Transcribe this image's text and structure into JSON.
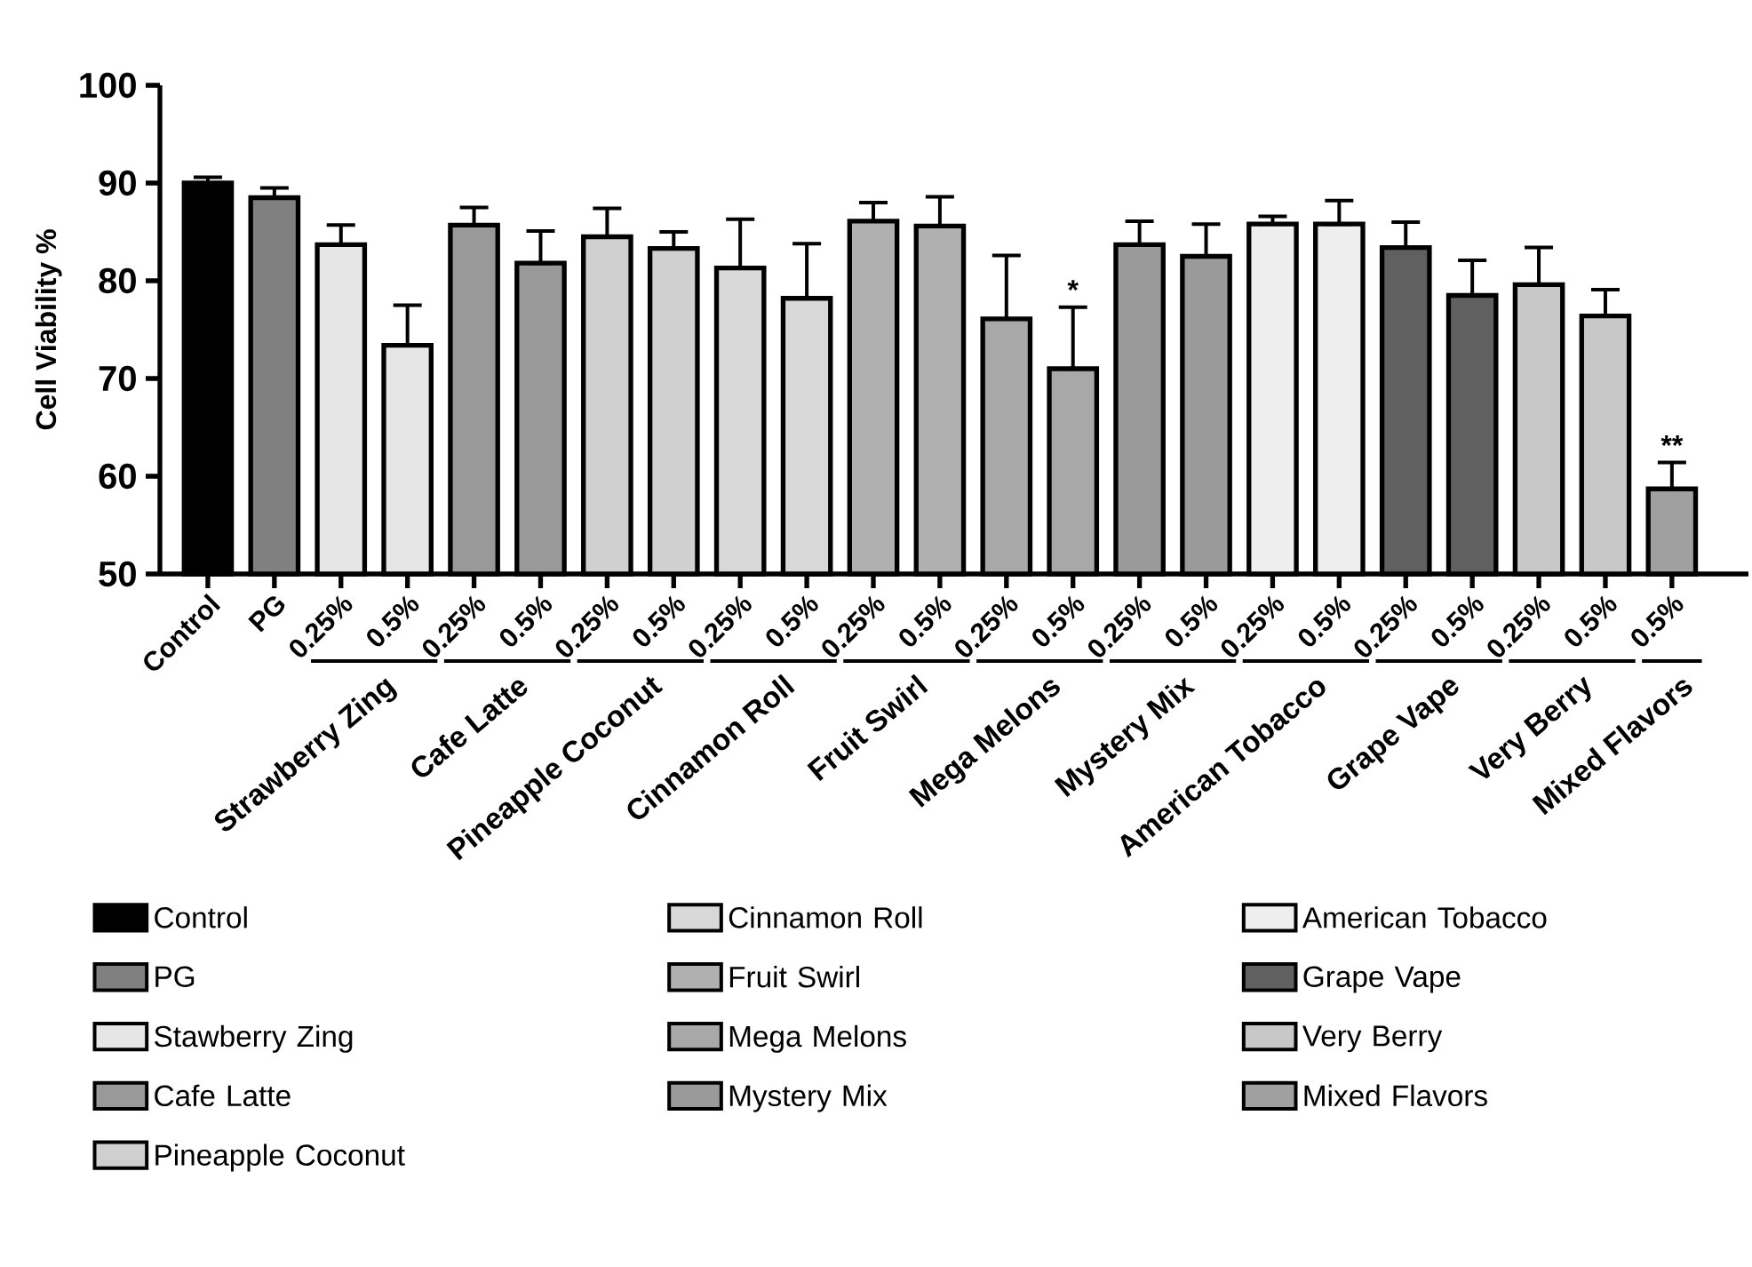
{
  "chart_data": {
    "type": "bar",
    "ylabel": "Cell Viability %",
    "ylim": [
      50,
      100
    ],
    "yticks": [
      50,
      60,
      70,
      80,
      90,
      100
    ],
    "legend": "bottom",
    "categories": [
      "Control",
      "PG",
      "0.25%",
      "0.5%",
      "0.25%",
      "0.5%",
      "0.25%",
      "0.5%",
      "0.25%",
      "0.5%",
      "0.25%",
      "0.5%",
      "0.25%",
      "0.5%",
      "0.25%",
      "0.5%",
      "0.25%",
      "0.5%",
      "0.25%",
      "0.5%",
      "0.25%",
      "0.5%",
      "0.5%"
    ],
    "annotations": [
      "Strawberry Zing",
      "Cafe Latte",
      "Pineapple Coconut",
      "Cinnamon Roll",
      "Fruit Swirl",
      "Mega Melons",
      "Mystery Mix",
      "American Tobacco",
      "Grape Vape",
      "Very Berry",
      "Mixed Flavors"
    ],
    "series": [
      {
        "name": "Control",
        "color": "#000000",
        "values": [
          90.0,
          null,
          null,
          null,
          null,
          null,
          null,
          null,
          null,
          null,
          null,
          null,
          null,
          null,
          null,
          null,
          null,
          null,
          null,
          null,
          null,
          null,
          null
        ],
        "errors": [
          [
            90.0,
            90.6
          ],
          null,
          null,
          null,
          null,
          null,
          null,
          null,
          null,
          null,
          null,
          null,
          null,
          null,
          null,
          null,
          null,
          null,
          null,
          null,
          null,
          null,
          null
        ]
      },
      {
        "name": "PG",
        "color": "#808080",
        "values": [
          null,
          88.5,
          null,
          null,
          null,
          null,
          null,
          null,
          null,
          null,
          null,
          null,
          null,
          null,
          null,
          null,
          null,
          null,
          null,
          null,
          null,
          null,
          null
        ],
        "errors": [
          null,
          [
            88.5,
            89.5
          ],
          null,
          null,
          null,
          null,
          null,
          null,
          null,
          null,
          null,
          null,
          null,
          null,
          null,
          null,
          null,
          null,
          null,
          null,
          null,
          null,
          null
        ]
      },
      {
        "name": "Stawberry Zing",
        "color": "#e6e6e6",
        "values": [
          null,
          null,
          83.7,
          73.4,
          null,
          null,
          null,
          null,
          null,
          null,
          null,
          null,
          null,
          null,
          null,
          null,
          null,
          null,
          null,
          null,
          null,
          null,
          null
        ],
        "errors": [
          null,
          null,
          [
            83.7,
            85.7
          ],
          [
            73.4,
            77.5
          ],
          null,
          null,
          null,
          null,
          null,
          null,
          null,
          null,
          null,
          null,
          null,
          null,
          null,
          null,
          null,
          null,
          null,
          null,
          null
        ]
      },
      {
        "name": "Cafe Latte",
        "color": "#999999",
        "values": [
          null,
          null,
          null,
          null,
          85.7,
          81.8,
          null,
          null,
          null,
          null,
          null,
          null,
          null,
          null,
          null,
          null,
          null,
          null,
          null,
          null,
          null,
          null,
          null
        ],
        "errors": [
          null,
          null,
          null,
          null,
          [
            85.7,
            87.5
          ],
          [
            81.8,
            85.1
          ],
          null,
          null,
          null,
          null,
          null,
          null,
          null,
          null,
          null,
          null,
          null,
          null,
          null,
          null,
          null,
          null,
          null
        ]
      },
      {
        "name": "Pineapple Coconut",
        "color": "#d0d0d0",
        "values": [
          null,
          null,
          null,
          null,
          null,
          null,
          84.5,
          83.3,
          null,
          null,
          null,
          null,
          null,
          null,
          null,
          null,
          null,
          null,
          null,
          null,
          null,
          null,
          null
        ],
        "errors": [
          null,
          null,
          null,
          null,
          null,
          null,
          [
            84.5,
            87.4
          ],
          [
            83.3,
            85.0
          ],
          null,
          null,
          null,
          null,
          null,
          null,
          null,
          null,
          null,
          null,
          null,
          null,
          null,
          null,
          null
        ]
      },
      {
        "name": "Cinnamon Roll",
        "color": "#d8d8d8",
        "values": [
          null,
          null,
          null,
          null,
          null,
          null,
          null,
          null,
          81.3,
          78.2,
          null,
          null,
          null,
          null,
          null,
          null,
          null,
          null,
          null,
          null,
          null,
          null,
          null
        ],
        "errors": [
          null,
          null,
          null,
          null,
          null,
          null,
          null,
          null,
          [
            81.3,
            86.3
          ],
          [
            78.2,
            83.8
          ],
          null,
          null,
          null,
          null,
          null,
          null,
          null,
          null,
          null,
          null,
          null,
          null,
          null
        ]
      },
      {
        "name": "Fruit Swirl",
        "color": "#b0b0b0",
        "values": [
          null,
          null,
          null,
          null,
          null,
          null,
          null,
          null,
          null,
          null,
          86.1,
          85.6,
          null,
          null,
          null,
          null,
          null,
          null,
          null,
          null,
          null,
          null,
          null
        ],
        "errors": [
          null,
          null,
          null,
          null,
          null,
          null,
          null,
          null,
          null,
          null,
          [
            86.1,
            88.0
          ],
          [
            85.6,
            88.6
          ],
          null,
          null,
          null,
          null,
          null,
          null,
          null,
          null,
          null,
          null,
          null
        ]
      },
      {
        "name": "Mega Melons",
        "color": "#a8a8a8",
        "values": [
          null,
          null,
          null,
          null,
          null,
          null,
          null,
          null,
          null,
          null,
          null,
          null,
          76.1,
          71.0,
          null,
          null,
          null,
          null,
          null,
          null,
          null,
          null,
          null
        ],
        "errors": [
          null,
          null,
          null,
          null,
          null,
          null,
          null,
          null,
          null,
          null,
          null,
          null,
          [
            76.1,
            82.6
          ],
          [
            71.0,
            77.3
          ],
          null,
          null,
          null,
          null,
          null,
          null,
          null,
          null,
          null
        ],
        "value_labels": [
          null,
          null,
          null,
          null,
          null,
          null,
          null,
          null,
          null,
          null,
          null,
          null,
          null,
          "*",
          null,
          null,
          null,
          null,
          null,
          null,
          null,
          null,
          null
        ]
      },
      {
        "name": "Mystery Mix",
        "color": "#9a9a9a",
        "values": [
          null,
          null,
          null,
          null,
          null,
          null,
          null,
          null,
          null,
          null,
          null,
          null,
          null,
          null,
          83.7,
          82.5,
          null,
          null,
          null,
          null,
          null,
          null,
          null
        ],
        "errors": [
          null,
          null,
          null,
          null,
          null,
          null,
          null,
          null,
          null,
          null,
          null,
          null,
          null,
          null,
          [
            83.7,
            86.1
          ],
          [
            82.5,
            85.8
          ],
          null,
          null,
          null,
          null,
          null,
          null,
          null
        ]
      },
      {
        "name": "American Tobacco",
        "color": "#eeeeee",
        "values": [
          null,
          null,
          null,
          null,
          null,
          null,
          null,
          null,
          null,
          null,
          null,
          null,
          null,
          null,
          null,
          null,
          85.8,
          85.8,
          null,
          null,
          null,
          null,
          null
        ],
        "errors": [
          null,
          null,
          null,
          null,
          null,
          null,
          null,
          null,
          null,
          null,
          null,
          null,
          null,
          null,
          null,
          null,
          [
            85.8,
            86.6
          ],
          [
            85.8,
            88.2
          ],
          null,
          null,
          null,
          null,
          null
        ]
      },
      {
        "name": "Grape Vape",
        "color": "#606060",
        "values": [
          null,
          null,
          null,
          null,
          null,
          null,
          null,
          null,
          null,
          null,
          null,
          null,
          null,
          null,
          null,
          null,
          null,
          null,
          83.4,
          78.5,
          null,
          null,
          null
        ],
        "errors": [
          null,
          null,
          null,
          null,
          null,
          null,
          null,
          null,
          null,
          null,
          null,
          null,
          null,
          null,
          null,
          null,
          null,
          null,
          [
            83.4,
            86.0
          ],
          [
            78.5,
            82.1
          ],
          null,
          null,
          null
        ]
      },
      {
        "name": "Very Berry",
        "color": "#c8c8c8",
        "values": [
          null,
          null,
          null,
          null,
          null,
          null,
          null,
          null,
          null,
          null,
          null,
          null,
          null,
          null,
          null,
          null,
          null,
          null,
          null,
          null,
          79.6,
          76.4,
          null
        ],
        "errors": [
          null,
          null,
          null,
          null,
          null,
          null,
          null,
          null,
          null,
          null,
          null,
          null,
          null,
          null,
          null,
          null,
          null,
          null,
          null,
          null,
          [
            79.6,
            83.4
          ],
          [
            76.4,
            79.1
          ],
          null
        ]
      },
      {
        "name": "Mixed Flavors",
        "color": "#a0a0a0",
        "values": [
          null,
          null,
          null,
          null,
          null,
          null,
          null,
          null,
          null,
          null,
          null,
          null,
          null,
          null,
          null,
          null,
          null,
          null,
          null,
          null,
          null,
          null,
          58.7
        ],
        "errors": [
          null,
          null,
          null,
          null,
          null,
          null,
          null,
          null,
          null,
          null,
          null,
          null,
          null,
          null,
          null,
          null,
          null,
          null,
          null,
          null,
          null,
          null,
          [
            58.7,
            61.4
          ]
        ],
        "value_labels": [
          null,
          null,
          null,
          null,
          null,
          null,
          null,
          null,
          null,
          null,
          null,
          null,
          null,
          null,
          null,
          null,
          null,
          null,
          null,
          null,
          null,
          null,
          "**"
        ]
      }
    ]
  }
}
